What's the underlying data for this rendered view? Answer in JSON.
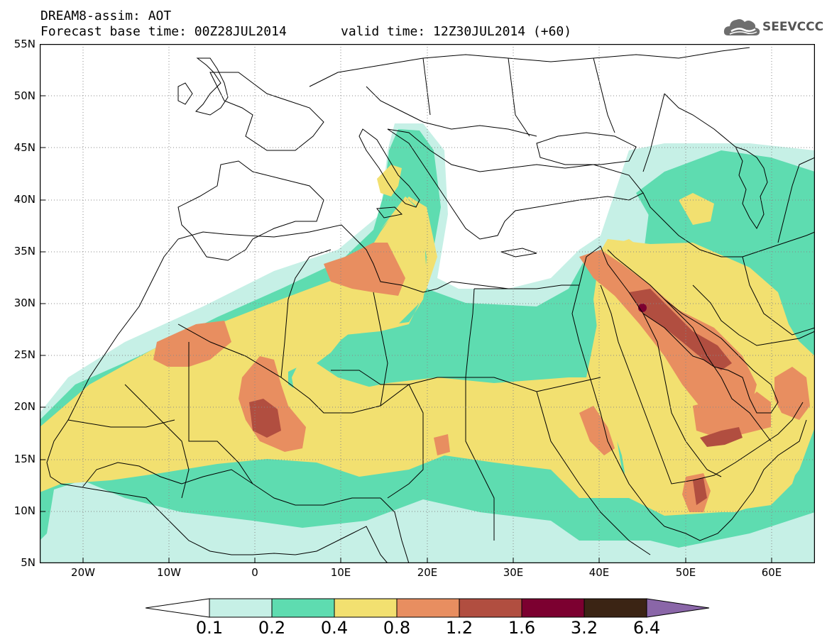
{
  "header": {
    "title": "DREAM8-assim: AOT",
    "base_time": "Forecast base time: 00Z28JUL2014",
    "valid_time": "valid time: 12Z30JUL2014 (+60)"
  },
  "logo": {
    "text": "SEEVCCC",
    "icon": "cloud-icon"
  },
  "axes": {
    "lat_labels": [
      "55N",
      "50N",
      "45N",
      "40N",
      "35N",
      "30N",
      "25N",
      "20N",
      "15N",
      "10N",
      "5N"
    ],
    "lon_labels": [
      "20W",
      "10W",
      "0",
      "10E",
      "20E",
      "30E",
      "40E",
      "50E",
      "60E"
    ],
    "lon_range": [
      -25,
      65
    ],
    "lat_range": [
      5,
      55
    ],
    "grid": "dotted"
  },
  "legend": {
    "labels": [
      "0.1",
      "0.2",
      "0.4",
      "0.8",
      "1.2",
      "1.6",
      "3.2",
      "6.4"
    ],
    "colors": [
      "#c6f0e6",
      "#5edcb0",
      "#f2e070",
      "#e88e60",
      "#b14e40",
      "#7c0030",
      "#3b2414",
      "#8a66a8"
    ]
  }
}
